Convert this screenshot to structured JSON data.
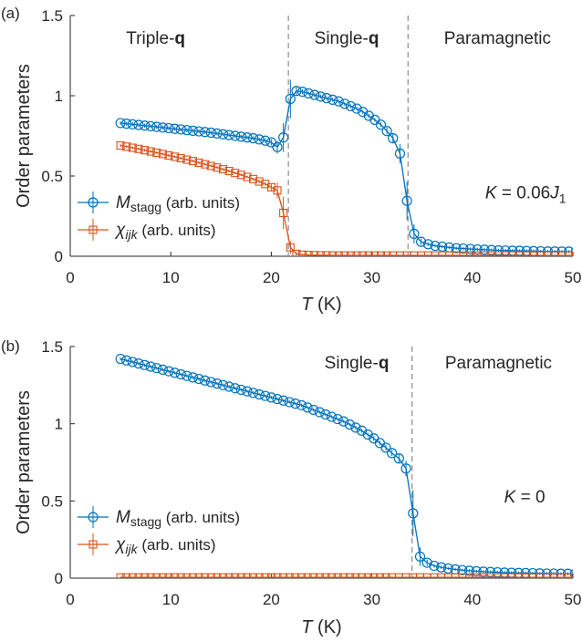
{
  "chart_data": [
    {
      "type": "line",
      "panel_label": "(a)",
      "xlabel_italic": "T",
      "xlabel_unit": " (K)",
      "ylabel": "Order parameters",
      "xlim": [
        0,
        50
      ],
      "ylim": [
        0,
        1.5
      ],
      "xticks": [
        0,
        10,
        20,
        30,
        40,
        50
      ],
      "yticks": [
        0,
        0.5,
        1,
        1.5
      ],
      "ytick_labels": [
        "0",
        "0.5",
        "1",
        "1.5"
      ],
      "grid": false,
      "legend_position": "bottom-left",
      "regions": [
        {
          "prefix": "Triple-",
          "bold": "q",
          "x": 8.5
        },
        {
          "prefix": "Single-",
          "bold": "q",
          "x": 27.5
        },
        {
          "prefix": "Paramagnetic",
          "bold": "",
          "x": 42.5
        }
      ],
      "vlines": [
        21.7,
        33.6
      ],
      "annotation": {
        "pre": "K",
        "mid": " = 0.06",
        "j": "J",
        "sub": "1",
        "x": 45.3,
        "y": 0.36
      },
      "series": [
        {
          "name": "M_stagg (arb. units)",
          "legend_main": "M",
          "legend_sub": "stagg",
          "legend_rest": " (arb. units)",
          "marker": "circle",
          "color": "#0072BD",
          "x": [
            5,
            5.6,
            6.2,
            6.8,
            7.4,
            8,
            8.6,
            9.2,
            9.8,
            10.4,
            11,
            11.6,
            12.2,
            12.8,
            13.4,
            14,
            14.6,
            15.2,
            15.8,
            16.4,
            17,
            17.6,
            18.2,
            18.8,
            19.4,
            20,
            20.6,
            21.2,
            21.9,
            22.5,
            23.1,
            23.7,
            24.3,
            24.9,
            25.5,
            26.1,
            26.7,
            27.3,
            27.9,
            28.5,
            29.1,
            29.7,
            30.3,
            30.9,
            31.5,
            32.1,
            32.8,
            33.5,
            34.2,
            34.9,
            35.6,
            36.3,
            37,
            37.7,
            38.4,
            39.1,
            39.8,
            40.5,
            41.2,
            41.9,
            42.6,
            43.3,
            44,
            44.7,
            45.4,
            46.1,
            46.8,
            47.5,
            48.2,
            48.9,
            49.6,
            50.3
          ],
          "y": [
            0.83,
            0.826,
            0.822,
            0.818,
            0.814,
            0.81,
            0.806,
            0.802,
            0.798,
            0.794,
            0.79,
            0.786,
            0.782,
            0.778,
            0.774,
            0.77,
            0.765,
            0.76,
            0.755,
            0.75,
            0.745,
            0.74,
            0.735,
            0.728,
            0.72,
            0.71,
            0.68,
            0.74,
            0.98,
            1.03,
            1.025,
            1.015,
            1.005,
            0.995,
            0.985,
            0.975,
            0.965,
            0.95,
            0.935,
            0.92,
            0.9,
            0.875,
            0.85,
            0.82,
            0.78,
            0.735,
            0.64,
            0.345,
            0.14,
            0.09,
            0.075,
            0.065,
            0.06,
            0.055,
            0.05,
            0.048,
            0.045,
            0.043,
            0.041,
            0.039,
            0.037,
            0.036,
            0.035,
            0.034,
            0.033,
            0.032,
            0.031,
            0.03,
            0.03,
            0.029,
            0.029,
            0.028
          ],
          "err": [
            0.012,
            0.012,
            0.012,
            0.012,
            0.012,
            0.012,
            0.012,
            0.012,
            0.012,
            0.012,
            0.012,
            0.012,
            0.012,
            0.012,
            0.012,
            0.012,
            0.012,
            0.012,
            0.012,
            0.012,
            0.012,
            0.012,
            0.012,
            0.012,
            0.015,
            0.02,
            0.04,
            0.09,
            0.12,
            0.03,
            0.015,
            0.012,
            0.012,
            0.012,
            0.012,
            0.012,
            0.012,
            0.012,
            0.012,
            0.012,
            0.012,
            0.012,
            0.012,
            0.015,
            0.02,
            0.03,
            0.06,
            0.12,
            0.06,
            0.02,
            0.012,
            0.01,
            0.01,
            0.01,
            0.01,
            0.01,
            0.01,
            0.01,
            0.01,
            0.01,
            0.01,
            0.01,
            0.01,
            0.01,
            0.01,
            0.01,
            0.01,
            0.01,
            0.01,
            0.01,
            0.01,
            0.01
          ]
        },
        {
          "name": "χ_ijk (arb. units)",
          "legend_main": "χ",
          "legend_sub": "ijk",
          "legend_rest": " (arb. units)",
          "marker": "square",
          "color": "#D95319",
          "x": [
            5,
            5.6,
            6.2,
            6.8,
            7.4,
            8,
            8.6,
            9.2,
            9.8,
            10.4,
            11,
            11.6,
            12.2,
            12.8,
            13.4,
            14,
            14.6,
            15.2,
            15.8,
            16.4,
            17,
            17.6,
            18.2,
            18.8,
            19.4,
            20,
            20.6,
            21.2,
            21.9,
            22.5,
            23.1,
            23.7,
            24.3,
            24.9,
            25.5,
            26.1,
            26.7,
            27.3,
            27.9,
            28.5,
            29.1,
            29.7,
            30.3,
            30.9,
            31.5,
            32.1,
            32.8,
            33.5,
            34.2,
            34.9,
            35.6,
            36.3,
            37,
            37.7,
            38.4,
            39.1,
            39.8,
            40.5,
            41.2,
            41.9,
            42.6,
            43.3,
            44,
            44.7,
            45.4,
            46.1,
            46.8,
            47.5,
            48.2,
            48.9,
            49.6,
            50.3
          ],
          "y": [
            0.69,
            0.683,
            0.676,
            0.669,
            0.661,
            0.653,
            0.645,
            0.637,
            0.628,
            0.62,
            0.611,
            0.602,
            0.593,
            0.583,
            0.573,
            0.563,
            0.553,
            0.542,
            0.531,
            0.519,
            0.507,
            0.494,
            0.481,
            0.466,
            0.45,
            0.43,
            0.41,
            0.27,
            0.055,
            0.015,
            0.01,
            0.008,
            0.007,
            0.006,
            0.006,
            0.005,
            0.005,
            0.005,
            0.005,
            0.005,
            0.005,
            0.005,
            0.005,
            0.005,
            0.005,
            0.005,
            0.005,
            0.005,
            0.005,
            0.005,
            0.005,
            0.005,
            0.005,
            0.005,
            0.005,
            0.005,
            0.005,
            0.005,
            0.005,
            0.005,
            0.005,
            0.005,
            0.005,
            0.005,
            0.005,
            0.005,
            0.005,
            0.005,
            0.005,
            0.005,
            0.005,
            0.005
          ],
          "err": [
            0.008,
            0.008,
            0.008,
            0.008,
            0.008,
            0.008,
            0.008,
            0.008,
            0.008,
            0.008,
            0.008,
            0.008,
            0.008,
            0.008,
            0.008,
            0.008,
            0.008,
            0.008,
            0.008,
            0.008,
            0.008,
            0.008,
            0.008,
            0.01,
            0.012,
            0.02,
            0.05,
            0.1,
            0.04,
            0.01,
            0.005,
            0.005,
            0.005,
            0.005,
            0.005,
            0.005,
            0.005,
            0.005,
            0.005,
            0.005,
            0.005,
            0.005,
            0.005,
            0.005,
            0.005,
            0.005,
            0.005,
            0.005,
            0.005,
            0.005,
            0.005,
            0.005,
            0.005,
            0.005,
            0.005,
            0.005,
            0.005,
            0.005,
            0.005,
            0.005,
            0.005,
            0.005,
            0.005,
            0.005,
            0.005,
            0.005,
            0.005,
            0.005,
            0.005,
            0.005,
            0.005,
            0.005
          ]
        }
      ]
    },
    {
      "type": "line",
      "panel_label": "(b)",
      "xlabel_italic": "T",
      "xlabel_unit": " (K)",
      "ylabel": "Order parameters",
      "xlim": [
        0,
        50
      ],
      "ylim": [
        0,
        1.5
      ],
      "xticks": [
        0,
        10,
        20,
        30,
        40,
        50
      ],
      "yticks": [
        0,
        0.5,
        1,
        1.5
      ],
      "ytick_labels": [
        "0",
        "0.5",
        "1",
        "1.5"
      ],
      "grid": false,
      "legend_position": "bottom-left",
      "regions": [
        {
          "prefix": "Single-",
          "bold": "q",
          "x": 28.5
        },
        {
          "prefix": "Paramagnetic",
          "bold": "",
          "x": 42.6
        }
      ],
      "vlines": [
        34.0
      ],
      "annotation": {
        "pre": "K",
        "mid": " = 0",
        "j": "",
        "sub": "",
        "x": 45.2,
        "y": 0.49
      },
      "series": [
        {
          "name": "M_stagg (arb. units)",
          "legend_main": "M",
          "legend_sub": "stagg",
          "legend_rest": " (arb. units)",
          "marker": "circle",
          "color": "#0072BD",
          "x": [
            5,
            5.6,
            6.2,
            6.8,
            7.4,
            8,
            8.6,
            9.2,
            9.8,
            10.4,
            11,
            11.6,
            12.2,
            12.8,
            13.4,
            14,
            14.6,
            15.2,
            15.8,
            16.4,
            17,
            17.6,
            18.2,
            18.8,
            19.4,
            20,
            20.6,
            21.2,
            21.8,
            22.4,
            23,
            23.6,
            24.2,
            24.8,
            25.4,
            26,
            26.6,
            27.2,
            27.8,
            28.4,
            29,
            29.6,
            30.2,
            30.8,
            31.4,
            32,
            32.7,
            33.4,
            34.1,
            34.8,
            35.5,
            36.2,
            36.9,
            37.6,
            38.3,
            39,
            39.7,
            40.4,
            41.1,
            41.8,
            42.5,
            43.2,
            43.9,
            44.6,
            45.3,
            46,
            46.7,
            47.4,
            48.1,
            48.8,
            49.5,
            50.2
          ],
          "y": [
            1.42,
            1.41,
            1.4,
            1.39,
            1.38,
            1.37,
            1.36,
            1.35,
            1.34,
            1.33,
            1.32,
            1.31,
            1.3,
            1.29,
            1.28,
            1.27,
            1.26,
            1.25,
            1.24,
            1.23,
            1.22,
            1.21,
            1.2,
            1.19,
            1.18,
            1.17,
            1.16,
            1.15,
            1.14,
            1.13,
            1.12,
            1.105,
            1.09,
            1.075,
            1.06,
            1.045,
            1.03,
            1.015,
            0.995,
            0.975,
            0.955,
            0.93,
            0.905,
            0.875,
            0.845,
            0.81,
            0.775,
            0.71,
            0.42,
            0.14,
            0.1,
            0.08,
            0.07,
            0.063,
            0.057,
            0.052,
            0.048,
            0.045,
            0.042,
            0.04,
            0.038,
            0.036,
            0.035,
            0.034,
            0.033,
            0.032,
            0.031,
            0.03,
            0.03,
            0.029,
            0.029,
            0.028
          ],
          "err": [
            0.01,
            0.01,
            0.01,
            0.01,
            0.01,
            0.01,
            0.01,
            0.01,
            0.01,
            0.01,
            0.01,
            0.01,
            0.01,
            0.01,
            0.01,
            0.01,
            0.01,
            0.01,
            0.01,
            0.01,
            0.01,
            0.01,
            0.01,
            0.01,
            0.01,
            0.01,
            0.01,
            0.01,
            0.01,
            0.01,
            0.01,
            0.01,
            0.01,
            0.01,
            0.01,
            0.01,
            0.01,
            0.01,
            0.01,
            0.012,
            0.012,
            0.012,
            0.015,
            0.015,
            0.02,
            0.02,
            0.03,
            0.05,
            0.15,
            0.06,
            0.02,
            0.012,
            0.01,
            0.01,
            0.01,
            0.01,
            0.01,
            0.01,
            0.01,
            0.01,
            0.01,
            0.01,
            0.01,
            0.01,
            0.01,
            0.01,
            0.01,
            0.01,
            0.01,
            0.01,
            0.01,
            0.01
          ]
        },
        {
          "name": "χ_ijk (arb. units)",
          "legend_main": "χ",
          "legend_sub": "ijk",
          "legend_rest": " (arb. units)",
          "marker": "square",
          "color": "#D95319",
          "x": [
            5,
            5.6,
            6.2,
            6.8,
            7.4,
            8,
            8.6,
            9.2,
            9.8,
            10.4,
            11,
            11.6,
            12.2,
            12.8,
            13.4,
            14,
            14.6,
            15.2,
            15.8,
            16.4,
            17,
            17.6,
            18.2,
            18.8,
            19.4,
            20,
            20.6,
            21.2,
            21.8,
            22.4,
            23,
            23.6,
            24.2,
            24.8,
            25.4,
            26,
            26.6,
            27.2,
            27.8,
            28.4,
            29,
            29.6,
            30.2,
            30.8,
            31.4,
            32,
            32.7,
            33.4,
            34.1,
            34.8,
            35.5,
            36.2,
            36.9,
            37.6,
            38.3,
            39,
            39.7,
            40.4,
            41.1,
            41.8,
            42.5,
            43.2,
            43.9,
            44.6,
            45.3,
            46,
            46.7,
            47.4,
            48.1,
            48.8,
            49.5,
            50.2
          ],
          "y": [
            0.005,
            0.005,
            0.005,
            0.005,
            0.005,
            0.005,
            0.005,
            0.005,
            0.005,
            0.005,
            0.005,
            0.005,
            0.005,
            0.005,
            0.005,
            0.005,
            0.005,
            0.005,
            0.005,
            0.005,
            0.005,
            0.005,
            0.005,
            0.005,
            0.005,
            0.005,
            0.005,
            0.005,
            0.005,
            0.005,
            0.005,
            0.005,
            0.005,
            0.005,
            0.005,
            0.005,
            0.005,
            0.005,
            0.005,
            0.005,
            0.005,
            0.005,
            0.005,
            0.005,
            0.005,
            0.005,
            0.005,
            0.005,
            0.005,
            0.005,
            0.005,
            0.005,
            0.005,
            0.005,
            0.005,
            0.005,
            0.005,
            0.005,
            0.005,
            0.005,
            0.005,
            0.005,
            0.005,
            0.005,
            0.005,
            0.005,
            0.005,
            0.005,
            0.005,
            0.005,
            0.005,
            0.005
          ],
          "err": [
            0.005,
            0.005,
            0.005,
            0.005,
            0.005,
            0.005,
            0.005,
            0.005,
            0.005,
            0.005,
            0.005,
            0.005,
            0.005,
            0.005,
            0.005,
            0.005,
            0.005,
            0.005,
            0.005,
            0.005,
            0.005,
            0.005,
            0.005,
            0.005,
            0.005,
            0.005,
            0.005,
            0.005,
            0.005,
            0.005,
            0.005,
            0.005,
            0.005,
            0.005,
            0.005,
            0.005,
            0.005,
            0.005,
            0.005,
            0.005,
            0.005,
            0.005,
            0.005,
            0.005,
            0.005,
            0.005,
            0.005,
            0.005,
            0.005,
            0.005,
            0.005,
            0.005,
            0.005,
            0.005,
            0.005,
            0.005,
            0.005,
            0.005,
            0.005,
            0.005,
            0.005,
            0.005,
            0.005,
            0.005,
            0.005,
            0.005,
            0.005,
            0.005,
            0.005,
            0.005,
            0.005,
            0.005
          ]
        }
      ]
    }
  ]
}
